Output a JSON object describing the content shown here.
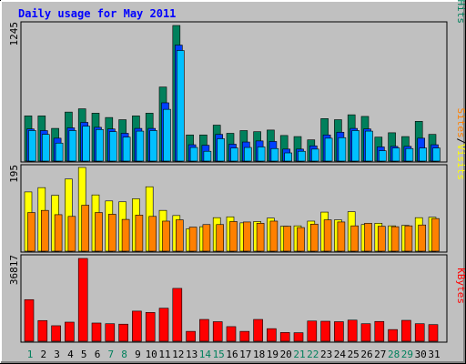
{
  "title": "Daily usage for May 2011",
  "colors": {
    "background": "#c0c0c0",
    "title": "#0000ff",
    "hits": "#00805c",
    "files": "#0040ff",
    "pages": "#00c0ff",
    "visits": "#ffff00",
    "sites": "#ff8000",
    "kbytes": "#ff0000",
    "weekday_label": "#000000",
    "weekend_label": "#00805c"
  },
  "panels": [
    {
      "id": "hits_files_pages",
      "scale_label": "1245"
    },
    {
      "id": "visits_sites",
      "scale_label": "195"
    },
    {
      "id": "kbytes",
      "scale_label": "36817"
    }
  ],
  "legend": {
    "top": [
      {
        "text": "Pages",
        "color": "#00c0ff"
      },
      {
        "text": "/",
        "color": "#000000"
      },
      {
        "text": "Files",
        "color": "#0040ff"
      },
      {
        "text": "/",
        "color": "#000000"
      },
      {
        "text": "Hits",
        "color": "#00805c"
      }
    ],
    "middle": [
      {
        "text": "Sites",
        "color": "#ff8000"
      },
      {
        "text": "/",
        "color": "#000000"
      },
      {
        "text": "Visits",
        "color": "#ffff00"
      }
    ],
    "bottom": [
      {
        "text": "KBytes",
        "color": "#ff0000"
      }
    ]
  },
  "chart_data": {
    "type": "bar",
    "title": "Daily usage for May 2011",
    "categories": [
      "1",
      "2",
      "3",
      "4",
      "5",
      "6",
      "7",
      "8",
      "9",
      "10",
      "11",
      "12",
      "13",
      "14",
      "15",
      "16",
      "17",
      "18",
      "19",
      "20",
      "21",
      "22",
      "23",
      "24",
      "25",
      "26",
      "27",
      "28",
      "29",
      "30",
      "31"
    ],
    "weekend_days": [
      1,
      7,
      8,
      14,
      15,
      21,
      22,
      28,
      29
    ],
    "panels": [
      {
        "ylim": [
          0,
          1245
        ],
        "series": [
          {
            "name": "Hits",
            "values": [
              415,
              415,
              300,
              450,
              480,
              440,
              400,
              380,
              415,
              440,
              680,
              1245,
              240,
              240,
              330,
              255,
              280,
              270,
              285,
              235,
              225,
              195,
              390,
              380,
              425,
              410,
              220,
              260,
              225,
              365,
              245
            ]
          },
          {
            "name": "Files",
            "values": [
              295,
              280,
              210,
              305,
              355,
              310,
              295,
              255,
              300,
              300,
              535,
              1065,
              150,
              145,
              245,
              155,
              175,
              185,
              180,
              110,
              110,
              140,
              240,
              265,
              300,
              295,
              130,
              135,
              135,
              210,
              150
            ]
          },
          {
            "name": "Pages",
            "values": [
              280,
              245,
              165,
              280,
              320,
              290,
              270,
              220,
              275,
              280,
              475,
              1015,
              125,
              90,
              205,
              120,
              125,
              130,
              115,
              75,
              90,
              110,
              210,
              215,
              280,
              275,
              95,
              120,
              115,
              120,
              120
            ]
          }
        ]
      },
      {
        "ylim": [
          0,
          195
        ],
        "series": [
          {
            "name": "Visits",
            "values": [
              138,
              148,
              130,
              168,
              195,
              131,
              117,
              115,
              122,
              150,
              95,
              83,
              52,
              57,
              78,
              80,
              66,
              69,
              77,
              58,
              59,
              70,
              91,
              73,
              92,
              62,
              65,
              59,
              60,
              78,
              79
            ]
          },
          {
            "name": "Sites",
            "values": [
              90,
              95,
              85,
              81,
              107,
              90,
              86,
              74,
              84,
              81,
              70,
              73,
              56,
              62,
              62,
              69,
              68,
              65,
              70,
              58,
              55,
              63,
              73,
              68,
              59,
              65,
              58,
              57,
              59,
              61,
              76
            ]
          }
        ]
      },
      {
        "ylim": [
          0,
          36817
        ],
        "series": [
          {
            "name": "KBytes",
            "values": [
              18500,
              9200,
              6900,
              8500,
              36817,
              8100,
              7800,
              7600,
              13400,
              12800,
              14700,
              23500,
              4400,
              9700,
              8700,
              6500,
              4400,
              9700,
              5600,
              3900,
              3800,
              9000,
              8900,
              8700,
              9400,
              7800,
              8800,
              5200,
              9300,
              7800,
              7400
            ]
          }
        ]
      }
    ]
  }
}
